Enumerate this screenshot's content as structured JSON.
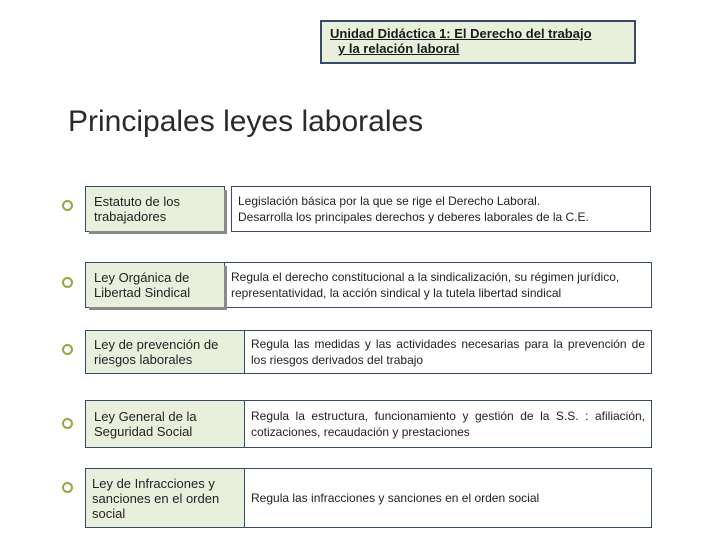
{
  "colors": {
    "box_background": "#e8f0dc",
    "box_border": "#374a6a",
    "page_background": "#ffffff",
    "bullet_ring": "#93a83f",
    "shadow": "#8a8a8a",
    "text": "#222222"
  },
  "fonts": {
    "heading_size_pt": 22,
    "body_size_pt": 10,
    "unit_size_pt": 10,
    "family": "Arial"
  },
  "unit_header": {
    "line1": "Unidad Didáctica 1: El Derecho del trabajo",
    "line2": "y la relación laboral"
  },
  "heading": "Principales leyes laborales",
  "rows": [
    {
      "law": "Estatuto de los trabajadores",
      "desc_line1": "Legislación básica por la que se rige el Derecho Laboral.",
      "desc_line2": "Desarrolla los principales derechos y deberes laborales de la C.E.",
      "left_shadow": true,
      "right_justify": false
    },
    {
      "law": "Ley Orgánica de Libertad Sindical",
      "desc": "Regula el derecho constitucional a la sindicalización, su régimen jurídico, representatividad, la acción sindical y la tutela libertad sindical",
      "left_shadow": true,
      "right_justify": false
    },
    {
      "law": "Ley de prevención de riesgos laborales",
      "desc": "Regula las medidas y las actividades necesarias para la prevención de los riesgos derivados del trabajo",
      "left_shadow": false,
      "right_justify": true
    },
    {
      "law": "Ley General de la Seguridad Social",
      "desc": "Regula la estructura, funcionamiento y gestión de la S.S. : afiliación, cotizaciones, recaudación y prestaciones",
      "left_shadow": false,
      "right_justify": true
    },
    {
      "law": "Ley de Infracciones y sanciones en el orden social",
      "desc": "Regula las infracciones y sanciones en el orden social",
      "left_shadow": false,
      "right_justify": false
    }
  ]
}
